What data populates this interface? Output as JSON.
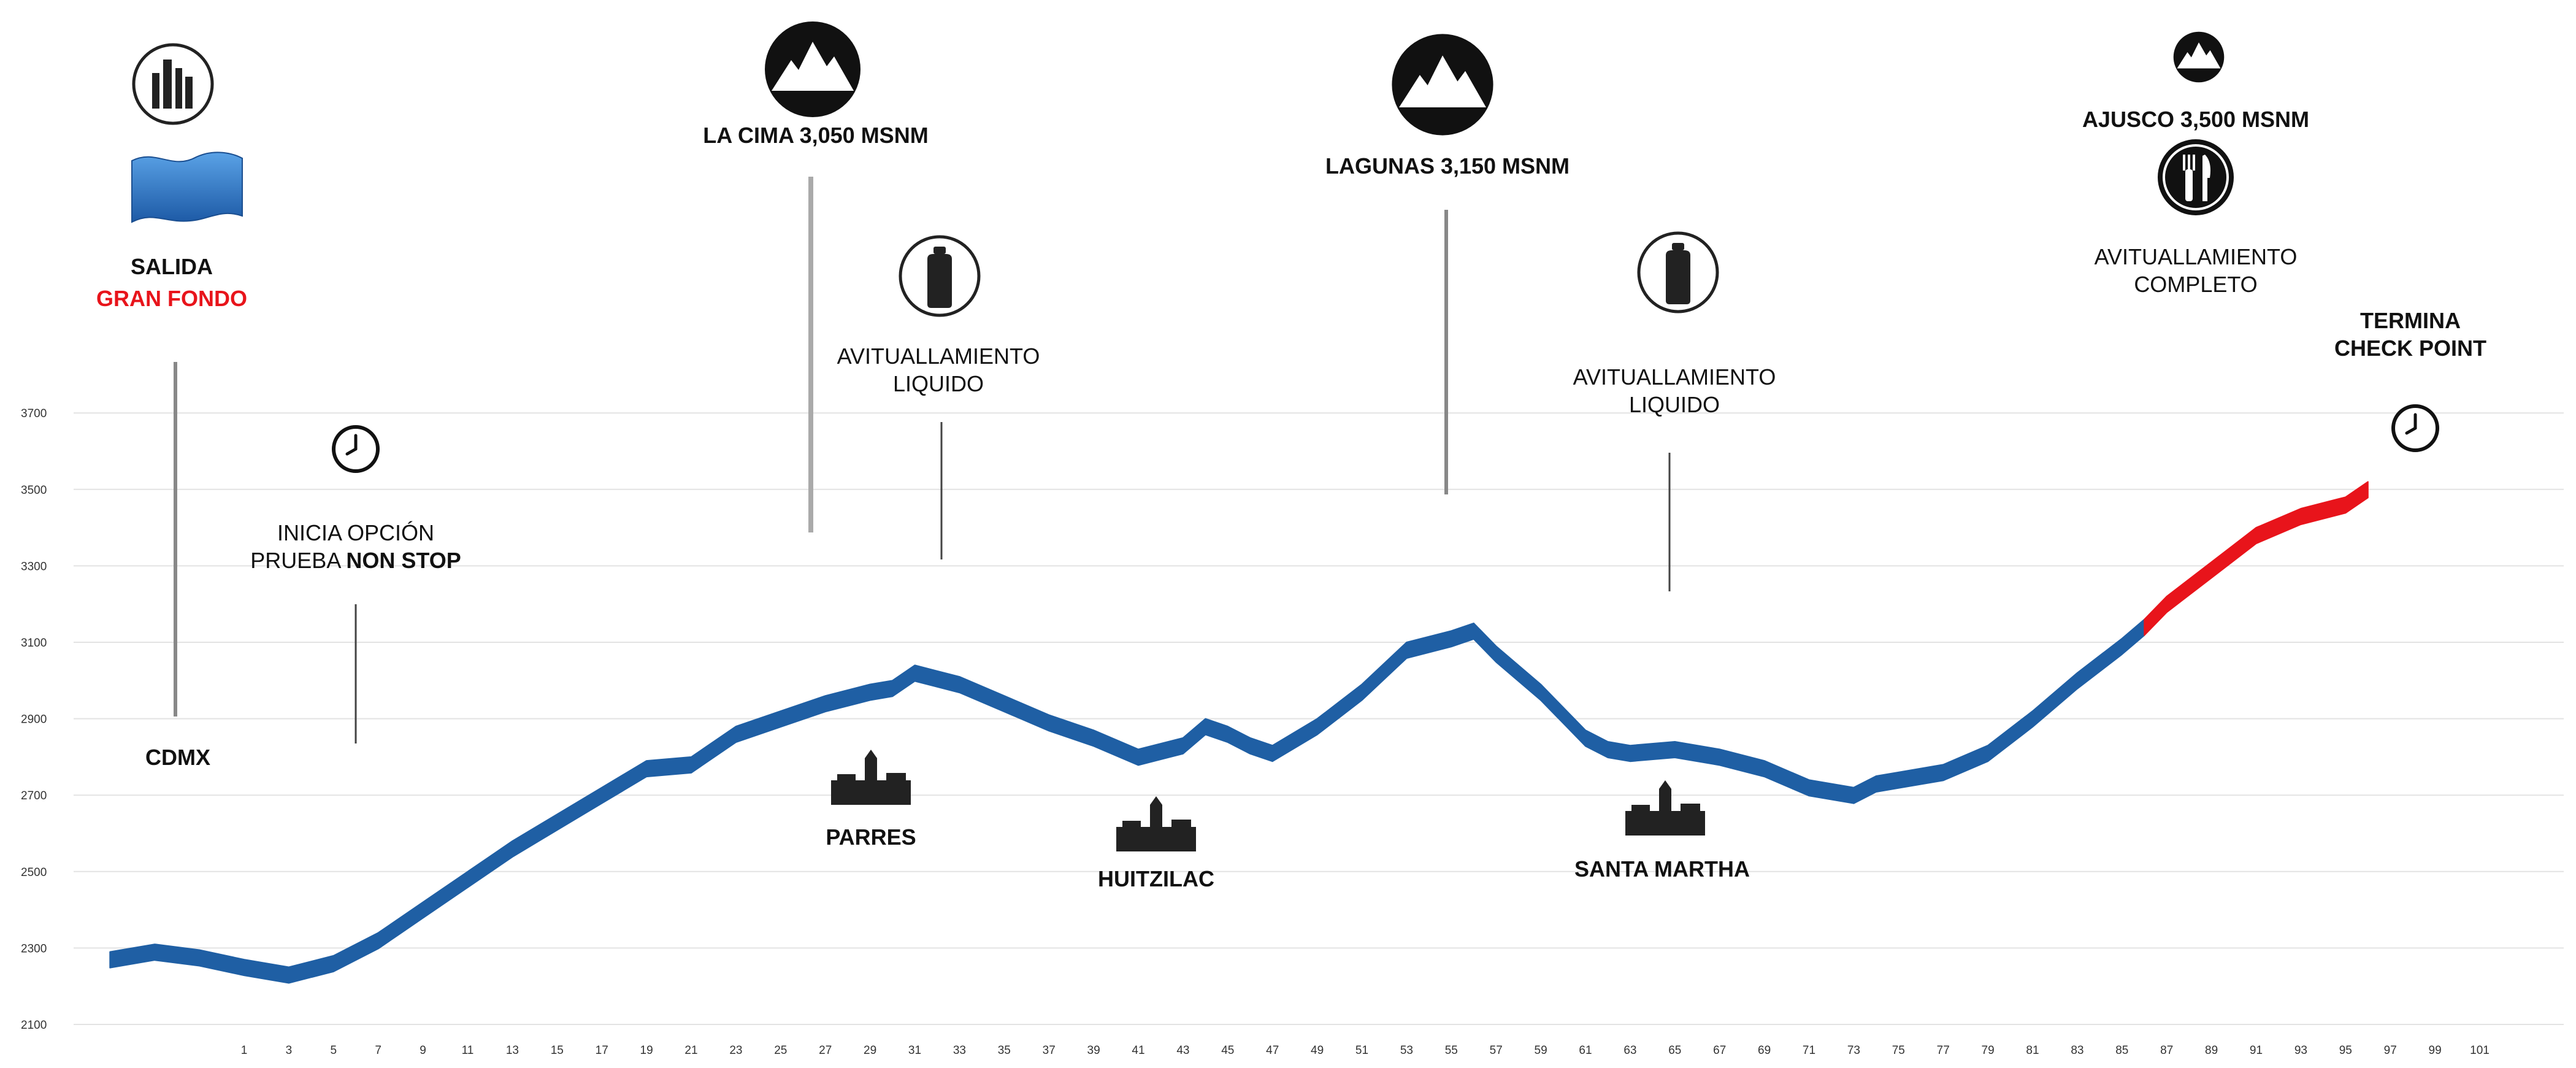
{
  "chart_data": {
    "type": "area",
    "title": "",
    "xlabel": "",
    "ylabel": "",
    "ylim": [
      2100,
      3700
    ],
    "xlim": [
      0,
      101
    ],
    "y_ticks": [
      2100,
      2300,
      2500,
      2700,
      2900,
      3100,
      3300,
      3500,
      3700
    ],
    "y_tick_labels": [
      "2100",
      "2300",
      "2500",
      "2700",
      "2900",
      "3100",
      "3300",
      "3500",
      "3700"
    ],
    "x_ticks": [
      1,
      3,
      5,
      7,
      9,
      11,
      13,
      15,
      17,
      19,
      21,
      23,
      25,
      27,
      29,
      31,
      33,
      35,
      37,
      39,
      41,
      43,
      45,
      47,
      49,
      51,
      53,
      55,
      57,
      59,
      61,
      63,
      65,
      67,
      69,
      71,
      73,
      75,
      77,
      79,
      81,
      83,
      85,
      87,
      89,
      91,
      93,
      95,
      97,
      99,
      101
    ],
    "x_tick_labels": [
      "1",
      "3",
      "5",
      "7",
      "9",
      "11",
      "13",
      "15",
      "17",
      "19",
      "21",
      "23",
      "25",
      "27",
      "29",
      "31",
      "33",
      "35",
      "37",
      "39",
      "41",
      "43",
      "45",
      "47",
      "49",
      "51",
      "53",
      "55",
      "57",
      "59",
      "61",
      "63",
      "65",
      "67",
      "69",
      "71",
      "73",
      "75",
      "77",
      "79",
      "81",
      "83",
      "85",
      "87",
      "89",
      "91",
      "93",
      "95",
      "97",
      "99",
      "101"
    ],
    "grid": true,
    "series": [
      {
        "color": "#1f5fa4",
        "x": [
          -5,
          -3,
          -1,
          1,
          3,
          5,
          7,
          9,
          11,
          13,
          15,
          17,
          19,
          21,
          23,
          25,
          27,
          29,
          30,
          31,
          33,
          35,
          37,
          39,
          41,
          43,
          44,
          45,
          46,
          47,
          49,
          51,
          53,
          55,
          56,
          57,
          59,
          61,
          62,
          63,
          65,
          67,
          69,
          71,
          73,
          74,
          75,
          77,
          79,
          81,
          83,
          85,
          86
        ],
        "y": [
          2290,
          2310,
          2295,
          2270,
          2250,
          2280,
          2340,
          2420,
          2500,
          2580,
          2650,
          2720,
          2790,
          2800,
          2880,
          2920,
          2960,
          2990,
          3000,
          3040,
          3010,
          2960,
          2910,
          2870,
          2820,
          2850,
          2900,
          2880,
          2850,
          2830,
          2900,
          2990,
          3100,
          3130,
          3150,
          3090,
          2990,
          2870,
          2840,
          2830,
          2840,
          2820,
          2790,
          2740,
          2720,
          2750,
          2760,
          2780,
          2830,
          2920,
          3020,
          3110,
          3160
        ]
      },
      {
        "color": "#e8141b",
        "x": [
          86,
          87,
          89,
          91,
          93,
          95,
          96
        ],
        "y": [
          3160,
          3220,
          3310,
          3400,
          3450,
          3480,
          3520
        ]
      }
    ],
    "annotations": [
      {
        "text": "CDMX"
      },
      {
        "text": "PARRES"
      },
      {
        "text": "HUITZILAC"
      },
      {
        "text": "SANTA MARTHA"
      }
    ]
  },
  "labels": {
    "salida": "SALIDA",
    "gran_fondo": "GRAN FONDO",
    "la_cima": "LA CIMA 3,050 MSNM",
    "lagunas": "LAGUNAS 3,150 MSNM",
    "ajusco": "AJUSCO 3,500 MSNM",
    "av_liquido_1a": "AVITUALLAMIENTO",
    "av_liquido_1b": "LIQUIDO",
    "av_liquido_2a": "AVITUALLAMIENTO",
    "av_liquido_2b": "LIQUIDO",
    "av_completo_a": "AVITUALLAMIENTO",
    "av_completo_b": "COMPLETO",
    "inicia_a": "INICIA OPCIÓN",
    "inicia_b_prefix": "PRUEBA ",
    "inicia_b_bold": "NON STOP",
    "termina": "TERMINA",
    "check_point": "CHECK POINT",
    "cdmx": "CDMX",
    "parres": "PARRES",
    "huitzilac": "HUITZILAC",
    "santa_martha": "SANTA MARTHA"
  },
  "icons": {
    "city": "city-skyline-icon",
    "flag": "start-flag-icon",
    "mountain": "mountain-icon",
    "bottle": "water-bottle-icon",
    "clock": "clock-icon",
    "food": "fork-knife-icon",
    "town": "town-church-icon"
  },
  "colors": {
    "route": "#1f5fa4",
    "route_final": "#e8141b",
    "grid": "#e3e3e3",
    "highlight_text": "#e8141b"
  }
}
